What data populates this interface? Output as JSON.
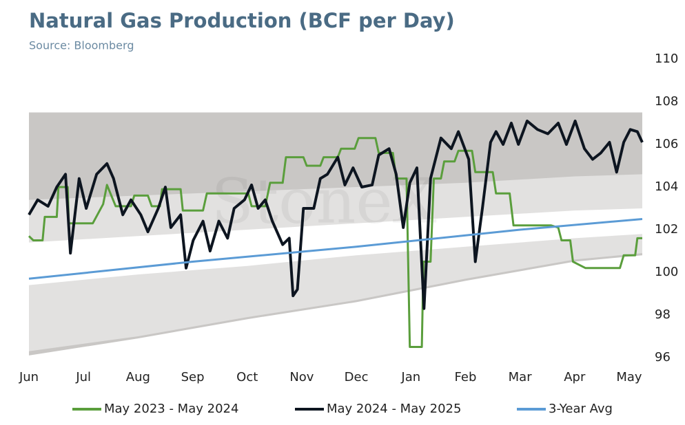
{
  "chart_data": {
    "type": "line",
    "title": "Natural Gas Production (BCF per Day)",
    "subtitle": "Source: Bloomberg",
    "watermark": "StoneX",
    "xlim": [
      0,
      11.24
    ],
    "xticks": [
      {
        "value": 0,
        "label": "Jun"
      },
      {
        "value": 1,
        "label": "Jul"
      },
      {
        "value": 2,
        "label": "Aug"
      },
      {
        "value": 3,
        "label": "Sep"
      },
      {
        "value": 4,
        "label": "Oct"
      },
      {
        "value": 5,
        "label": "Nov"
      },
      {
        "value": 6,
        "label": "Dec"
      },
      {
        "value": 7,
        "label": "Jan"
      },
      {
        "value": 8,
        "label": "Feb"
      },
      {
        "value": 9,
        "label": "Mar"
      },
      {
        "value": 10,
        "label": "Apr"
      },
      {
        "value": 11,
        "label": "May"
      }
    ],
    "ylim": [
      96,
      110
    ],
    "yticks": [
      96,
      98,
      100,
      102,
      104,
      106,
      108,
      110
    ],
    "grid": false,
    "legend": "bottom",
    "bands": [
      {
        "color": "#c9c7c5",
        "x": [
          0,
          2,
          4,
          6,
          8,
          10,
          11.24
        ],
        "upper": [
          107.5,
          107.5,
          107.5,
          107.5,
          107.5,
          107.5,
          107.5
        ],
        "lower": [
          96.1,
          96.9,
          97.8,
          98.6,
          99.6,
          100.5,
          100.8
        ]
      },
      {
        "color": "#e2e1e0",
        "x": [
          0,
          2,
          4,
          6,
          8,
          10,
          11.24
        ],
        "upper": [
          103.4,
          103.6,
          103.8,
          104.0,
          104.2,
          104.5,
          104.6
        ],
        "lower": [
          96.3,
          97.0,
          97.9,
          98.7,
          99.7,
          100.6,
          100.9
        ]
      },
      {
        "color": "#ffffff",
        "x": [
          0,
          2,
          4,
          6,
          8,
          10,
          11.24
        ],
        "upper": [
          101.4,
          101.7,
          102.0,
          102.3,
          102.6,
          102.9,
          103.0
        ],
        "lower": [
          99.4,
          99.9,
          100.3,
          100.8,
          101.2,
          101.6,
          101.8
        ]
      }
    ],
    "series": [
      {
        "name": "May 2023 - May 2024",
        "color": "#5a9e3c",
        "width": 3,
        "x": [
          0,
          0.08,
          0.25,
          0.29,
          0.51,
          0.54,
          0.71,
          0.73,
          1.17,
          1.36,
          1.43,
          1.59,
          1.87,
          1.93,
          2.18,
          2.25,
          2.4,
          2.44,
          2.78,
          2.82,
          3.19,
          3.26,
          4.02,
          4.08,
          4.33,
          4.42,
          4.65,
          4.71,
          5.03,
          5.09,
          5.34,
          5.4,
          5.66,
          5.72,
          5.97,
          6.04,
          6.35,
          6.41,
          6.67,
          6.73,
          6.92,
          6.98,
          7.2,
          7.23,
          7.36,
          7.42,
          7.55,
          7.61,
          7.8,
          7.87,
          8.12,
          8.18,
          8.5,
          8.56,
          8.81,
          8.88,
          9.57,
          9.7,
          9.76,
          9.92,
          9.97,
          10.2,
          10.83,
          10.9,
          11.11,
          11.15,
          11.24
        ],
        "values": [
          101.7,
          101.5,
          101.5,
          102.6,
          102.6,
          104.0,
          104.0,
          102.3,
          102.3,
          103.2,
          104.1,
          103.1,
          103.1,
          103.6,
          103.6,
          103.1,
          103.1,
          103.9,
          103.9,
          102.9,
          102.9,
          103.7,
          103.7,
          103.1,
          103.1,
          104.2,
          104.2,
          105.4,
          105.4,
          105.0,
          105.0,
          105.4,
          105.4,
          105.8,
          105.8,
          106.3,
          106.3,
          105.6,
          105.6,
          104.4,
          104.4,
          96.5,
          96.5,
          100.5,
          100.5,
          104.4,
          104.4,
          105.2,
          105.2,
          105.7,
          105.7,
          104.7,
          104.7,
          103.7,
          103.7,
          102.2,
          102.2,
          102.1,
          101.5,
          101.5,
          100.5,
          100.2,
          100.2,
          100.8,
          100.8,
          101.6,
          101.6
        ]
      },
      {
        "name": "May 2024 - May 2025",
        "color": "#0d1520",
        "width": 4,
        "x": [
          0,
          0.16,
          0.35,
          0.51,
          0.67,
          0.76,
          0.92,
          1.05,
          1.24,
          1.43,
          1.55,
          1.72,
          1.87,
          2.05,
          2.18,
          2.37,
          2.5,
          2.6,
          2.78,
          2.88,
          3.01,
          3.19,
          3.32,
          3.48,
          3.64,
          3.76,
          3.95,
          4.08,
          4.2,
          4.33,
          4.46,
          4.65,
          4.77,
          4.84,
          4.92,
          5.03,
          5.22,
          5.34,
          5.47,
          5.66,
          5.79,
          5.94,
          6.1,
          6.29,
          6.41,
          6.6,
          6.73,
          6.86,
          6.98,
          7.11,
          7.24,
          7.36,
          7.55,
          7.74,
          7.87,
          8.06,
          8.18,
          8.31,
          8.46,
          8.56,
          8.69,
          8.84,
          8.97,
          9.13,
          9.32,
          9.51,
          9.7,
          9.85,
          10.01,
          10.18,
          10.33,
          10.48,
          10.64,
          10.77,
          10.9,
          11.02,
          11.15,
          11.24
        ],
        "values": [
          102.7,
          103.4,
          103.1,
          104.0,
          104.6,
          100.9,
          104.4,
          103.0,
          104.6,
          105.1,
          104.4,
          102.7,
          103.4,
          102.7,
          101.9,
          103.0,
          104.0,
          102.1,
          102.7,
          100.2,
          101.5,
          102.4,
          101.0,
          102.4,
          101.6,
          103.0,
          103.4,
          104.1,
          103.0,
          103.4,
          102.4,
          101.3,
          101.6,
          98.9,
          99.2,
          103.0,
          103.0,
          104.4,
          104.6,
          105.4,
          104.1,
          104.9,
          104.0,
          104.1,
          105.5,
          105.8,
          104.6,
          102.1,
          104.2,
          104.9,
          98.3,
          104.4,
          106.3,
          105.8,
          106.6,
          105.3,
          100.5,
          103.0,
          106.1,
          106.6,
          106.0,
          107.0,
          106.0,
          107.1,
          106.7,
          106.5,
          107.0,
          106.0,
          107.1,
          105.8,
          105.3,
          105.6,
          106.1,
          104.7,
          106.1,
          106.7,
          106.6,
          106.1
        ]
      },
      {
        "name": "3-Year Avg",
        "color": "#5b9bd5",
        "width": 3,
        "x": [
          0,
          3,
          6,
          9,
          11.24
        ],
        "values": [
          99.7,
          100.5,
          101.2,
          102.0,
          102.5
        ]
      }
    ]
  }
}
